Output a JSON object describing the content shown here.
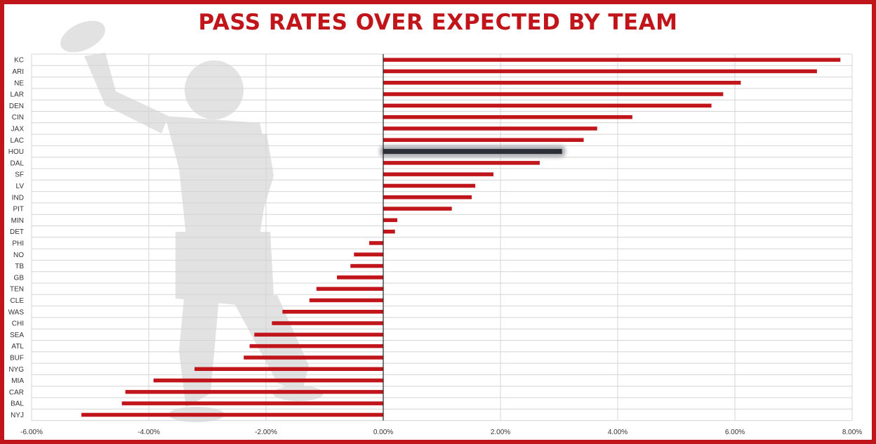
{
  "colors": {
    "bar": "#c0161b",
    "highlight": "#2b3038",
    "grid": "#d4d4d4",
    "frame": "#c0161b",
    "title": "#c0161b"
  },
  "player_image": {
    "description_icon": "quarterback-throwing-image"
  },
  "chart_data": {
    "type": "bar",
    "orientation": "horizontal",
    "title": "PASS RATES OVER EXPECTED BY TEAM",
    "xlabel": "",
    "ylabel": "",
    "xlim": [
      -6,
      8
    ],
    "x_ticks": [
      -6,
      -4,
      -2,
      0,
      2,
      4,
      6,
      8
    ],
    "x_tick_labels": [
      "-6.00%",
      "-4.00%",
      "-2.00%",
      "0.00%",
      "2.00%",
      "4.00%",
      "6.00%",
      "8.00%"
    ],
    "grid": true,
    "highlight": "HOU",
    "categories": [
      "KC",
      "ARI",
      "NE",
      "LAR",
      "DEN",
      "CIN",
      "JAX",
      "LAC",
      "HOU",
      "DAL",
      "SF",
      "LV",
      "IND",
      "PIT",
      "MIN",
      "DET",
      "PHI",
      "NO",
      "TB",
      "GB",
      "TEN",
      "CLE",
      "WAS",
      "CHI",
      "SEA",
      "ATL",
      "BUF",
      "NYG",
      "MIA",
      "CAR",
      "BAL",
      "NYJ"
    ],
    "values": [
      7.8,
      7.4,
      6.1,
      5.8,
      5.6,
      4.25,
      3.65,
      3.42,
      3.05,
      2.67,
      1.88,
      1.57,
      1.51,
      1.17,
      0.24,
      0.2,
      -0.24,
      -0.5,
      -0.56,
      -0.79,
      -1.14,
      -1.26,
      -1.72,
      -1.9,
      -2.2,
      -2.28,
      -2.38,
      -3.22,
      -3.92,
      -4.4,
      -4.46,
      -5.15
    ]
  }
}
